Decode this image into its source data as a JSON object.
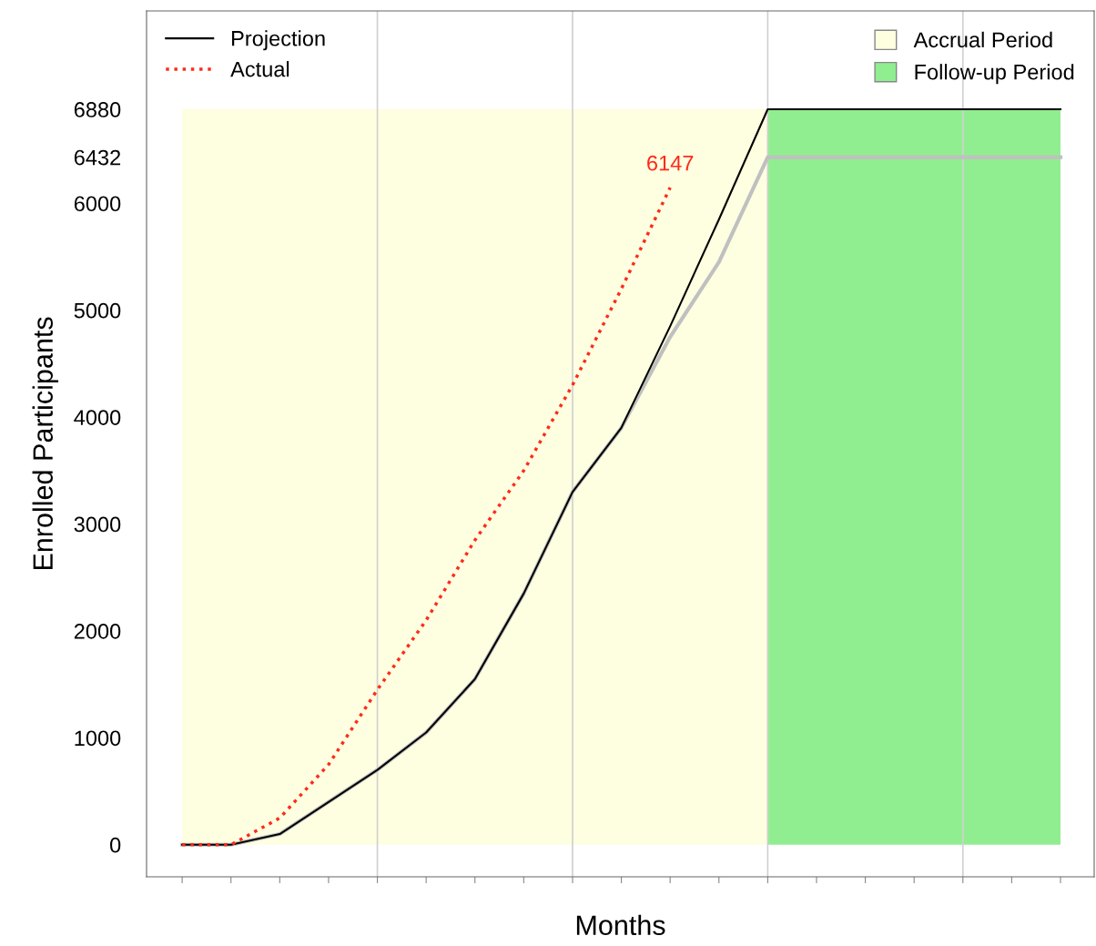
{
  "chart_data": {
    "type": "line",
    "xlabel": "Months",
    "ylabel": "Enrolled Participants",
    "categories": [
      null,
      null,
      null,
      null,
      null,
      null,
      null,
      null,
      null,
      null,
      null,
      null,
      null,
      null,
      null,
      null,
      null,
      null,
      null
    ],
    "series": [
      {
        "color": "#c0c0c0",
        "line_style": "solid",
        "values": [
          0,
          0,
          100,
          400,
          700,
          1050,
          1550,
          2350,
          3300,
          3900,
          4750,
          5450,
          6432,
          6432,
          6432,
          6432,
          6432,
          6432,
          6432
        ]
      },
      {
        "name": "Projection",
        "color": "#000000",
        "line_style": "solid",
        "values": [
          0,
          0,
          100,
          400,
          700,
          1050,
          1550,
          2350,
          3300,
          3900,
          4850,
          5850,
          6880,
          6880,
          6880,
          6880,
          6880,
          6880,
          6880
        ]
      },
      {
        "name": "Actual",
        "color": "#ff2a1a",
        "line_style": "dotted",
        "values": [
          0,
          0,
          250,
          750,
          1450,
          2100,
          2850,
          3500,
          4300,
          5200,
          6147,
          null,
          null,
          null,
          null,
          null,
          null,
          null,
          null
        ]
      }
    ],
    "annotations": [
      {
        "text": "6147",
        "y": 6147
      },
      "Accrual Period",
      "Follow-up Period"
    ],
    "ylim": [
      -300,
      7800
    ],
    "yticks": [
      0,
      1000,
      2000,
      3000,
      4000,
      5000,
      6000,
      6432,
      6880
    ],
    "grid": "x",
    "tick_labels": "y",
    "legend": "top"
  }
}
